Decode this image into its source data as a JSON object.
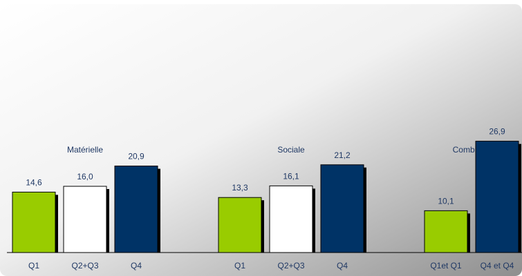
{
  "chart_data": {
    "type": "bar",
    "title": "",
    "xlabel": "",
    "ylabel": "",
    "ylim": [
      0,
      60
    ],
    "grid": false,
    "legend": "none",
    "groups": [
      {
        "name": "Matérielle",
        "bars": [
          {
            "category": "Q1",
            "value": 14.6,
            "label": "14,6",
            "color": "#99cc00"
          },
          {
            "category": "Q2+Q3",
            "value": 16.0,
            "label": "16,0",
            "color": "#ffffff"
          },
          {
            "category": "Q4",
            "value": 20.9,
            "label": "20,9",
            "color": "#003366"
          }
        ]
      },
      {
        "name": "Sociale",
        "bars": [
          {
            "category": "Q1",
            "value": 13.3,
            "label": "13,3",
            "color": "#99cc00"
          },
          {
            "category": "Q2+Q3",
            "value": 16.1,
            "label": "16,1",
            "color": "#ffffff"
          },
          {
            "category": "Q4",
            "value": 21.2,
            "label": "21,2",
            "color": "#003366"
          }
        ]
      },
      {
        "name": "Combinée",
        "bars": [
          {
            "category": "Q1et Q1",
            "value": 10.1,
            "label": "10,1",
            "color": "#99cc00"
          },
          {
            "category": "Q4 et Q4",
            "value": 26.9,
            "label": "26,9",
            "color": "#003366"
          }
        ]
      }
    ]
  }
}
